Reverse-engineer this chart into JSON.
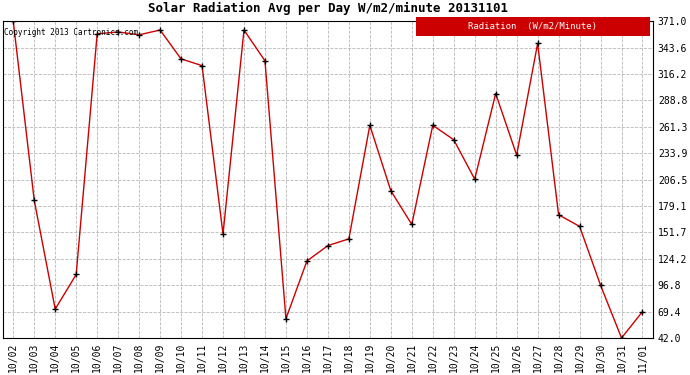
{
  "title": "Solar Radiation Avg per Day W/m2/minute 20131101",
  "copyright": "Copyright 2013 Cartronics.com",
  "legend_label": "Radiation  (W/m2/Minute)",
  "dates": [
    "10/02",
    "10/03",
    "10/04",
    "10/05",
    "10/06",
    "10/07",
    "10/08",
    "10/09",
    "10/10",
    "10/11",
    "10/12",
    "10/13",
    "10/14",
    "10/15",
    "10/16",
    "10/17",
    "10/18",
    "10/19",
    "10/20",
    "10/21",
    "10/22",
    "10/23",
    "10/24",
    "10/25",
    "10/26",
    "10/27",
    "10/28",
    "10/29",
    "10/30",
    "10/31",
    "11/01"
  ],
  "values": [
    371.0,
    185.0,
    72.0,
    108.0,
    358.0,
    360.0,
    357.0,
    362.0,
    332.0,
    325.0,
    150.0,
    362.0,
    330.0,
    62.0,
    122.0,
    138.0,
    145.0,
    263.0,
    195.0,
    160.0,
    263.0,
    248.0,
    207.0,
    296.0,
    232.0,
    348.0,
    170.0,
    158.0,
    96.8,
    42.0,
    69.4
  ],
  "line_color": "#cc0000",
  "marker_color": "#000000",
  "bg_color": "#ffffff",
  "grid_color": "#999999",
  "ylim_min": 42.0,
  "ylim_max": 371.0,
  "yticks": [
    42.0,
    69.4,
    96.8,
    124.2,
    151.7,
    179.1,
    206.5,
    233.9,
    261.3,
    288.8,
    316.2,
    343.6,
    371.0
  ],
  "title_fontsize": 9,
  "tick_fontsize": 7,
  "legend_bg": "#cc0000",
  "legend_text_color": "#ffffff",
  "figwidth": 6.9,
  "figheight": 3.75,
  "dpi": 100
}
